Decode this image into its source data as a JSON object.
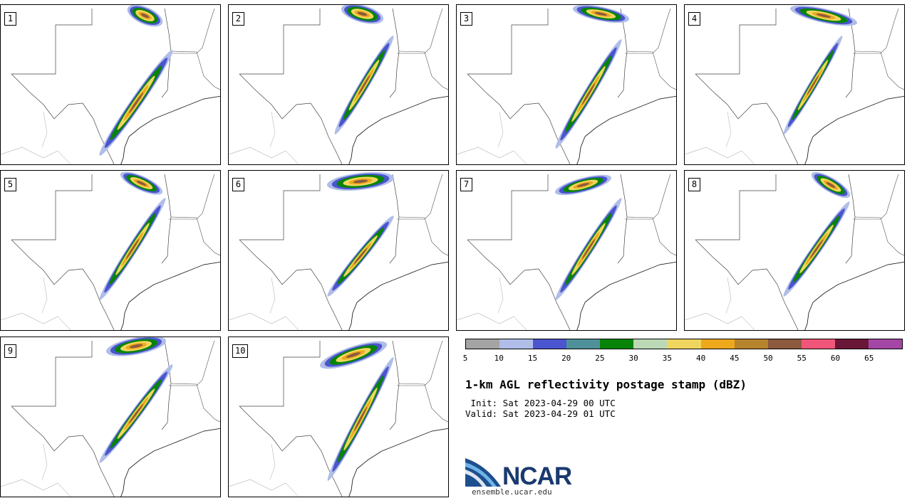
{
  "panels": [
    {
      "label": "1"
    },
    {
      "label": "2"
    },
    {
      "label": "3"
    },
    {
      "label": "4"
    },
    {
      "label": "5"
    },
    {
      "label": "6"
    },
    {
      "label": "7"
    },
    {
      "label": "8"
    },
    {
      "label": "9"
    },
    {
      "label": "10"
    }
  ],
  "colorbar": {
    "colors": [
      "#a4a4a4",
      "#b0bde8",
      "#4b55d0",
      "#4f9198",
      "#078407",
      "#bbd9b5",
      "#f0d660",
      "#eea81c",
      "#b8832d",
      "#8c5a3e",
      "#f0557a",
      "#6a1737",
      "#a447a4"
    ],
    "ticks": [
      "5",
      "10",
      "15",
      "20",
      "25",
      "30",
      "35",
      "40",
      "45",
      "50",
      "55",
      "60",
      "65"
    ]
  },
  "title": "1-km AGL reflectivity postage stamp (dBZ)",
  "init": " Init: Sat 2023-04-29 00 UTC",
  "valid": "Valid: Sat 2023-04-29 01 UTC",
  "logo": {
    "name": "NCAR",
    "url": "ensemble.ucar.edu"
  }
}
